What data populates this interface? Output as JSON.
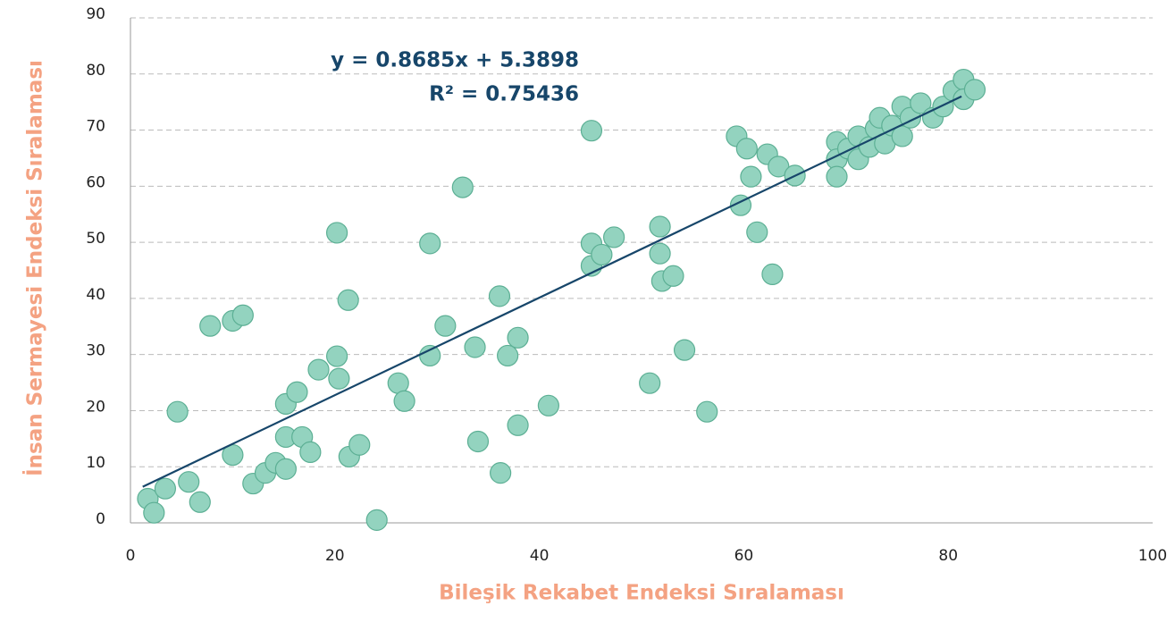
{
  "chart_data": {
    "type": "scatter",
    "x_label": "Bileşik Rekabet Endeksi Sıralaması",
    "y_label": "İnsan Sermayesi Endeksi Sıralaması",
    "annotations": [
      "y = 0.8685x + 5.3898",
      "R² = 0.75436"
    ],
    "trendline": {
      "slope": 0.8685,
      "intercept": 5.3898
    },
    "xlim": [
      0,
      100
    ],
    "xticks": [
      0,
      20,
      40,
      60,
      80,
      100
    ],
    "ylim": [
      0,
      90
    ],
    "yticks": [
      0,
      10,
      20,
      30,
      40,
      50,
      60,
      70,
      80,
      90
    ],
    "grid": true,
    "color": "#93d3bf",
    "edge_color": "#5caf94",
    "line_color": "#17466a",
    "x": [
      1.7,
      2.3,
      3.4,
      4.6,
      5.7,
      6.8,
      7.8,
      10,
      11,
      10,
      12,
      13.2,
      14.2,
      15.2,
      15.2,
      15.2,
      16.3,
      16.8,
      17.6,
      18.4,
      20.2,
      20.4,
      20.2,
      21.3,
      21.4,
      22.4,
      24.1,
      26.2,
      26.8,
      29.3,
      29.3,
      30.8,
      32.5,
      33.7,
      34,
      36.1,
      36.2,
      36.9,
      37.9,
      37.9,
      40.9,
      45.1,
      45.1,
      45.1,
      46.1,
      47.3,
      50.8,
      51.8,
      51.8,
      52,
      53.1,
      54.2,
      56.4,
      59.3,
      59.7,
      60.3,
      60.7,
      61.3,
      62.3,
      62.8,
      63.4,
      65,
      69.1,
      69.1,
      69.1,
      70.2,
      71.2,
      71.2,
      72.3,
      72.9,
      73.3,
      73.8,
      74.5,
      75.5,
      75.5,
      76.3,
      77.3,
      78.5,
      79.5,
      80.5,
      81.5,
      81.5,
      82.6
    ],
    "values": [
      4.3,
      1.8,
      6.1,
      19.8,
      7.3,
      3.7,
      35.1,
      36,
      37,
      12.1,
      7,
      8.9,
      10.7,
      9.6,
      15.3,
      21.2,
      23.3,
      15.3,
      12.6,
      27.3,
      29.7,
      25.7,
      51.7,
      39.7,
      11.8,
      13.9,
      0.5,
      24.9,
      21.7,
      29.8,
      49.8,
      35.1,
      59.8,
      31.3,
      14.5,
      40.4,
      8.9,
      29.8,
      33,
      17.4,
      20.9,
      69.9,
      49.8,
      45.8,
      47.8,
      50.9,
      24.9,
      52.8,
      48,
      43.1,
      44,
      30.8,
      19.8,
      68.9,
      56.6,
      66.7,
      61.7,
      51.8,
      65.7,
      44.3,
      63.5,
      61.9,
      67.9,
      64.8,
      61.7,
      66.7,
      68.9,
      64.8,
      67,
      70.3,
      72.2,
      67.6,
      70.8,
      68.9,
      74.2,
      72.2,
      74.8,
      72.2,
      74.2,
      77,
      79,
      75.5,
      77.2
    ]
  }
}
